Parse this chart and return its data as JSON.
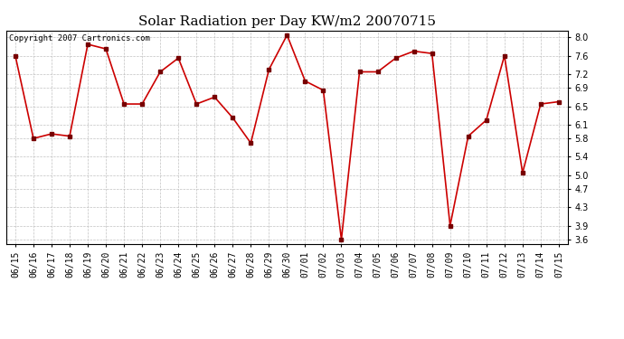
{
  "title": "Solar Radiation per Day KW/m2 20070715",
  "copyright_text": "Copyright 2007 Cartronics.com",
  "dates": [
    "06/15",
    "06/16",
    "06/17",
    "06/18",
    "06/19",
    "06/20",
    "06/21",
    "06/22",
    "06/23",
    "06/24",
    "06/25",
    "06/26",
    "06/27",
    "06/28",
    "06/29",
    "06/30",
    "07/01",
    "07/02",
    "07/03",
    "07/04",
    "07/05",
    "07/06",
    "07/07",
    "07/08",
    "07/09",
    "07/10",
    "07/11",
    "07/12",
    "07/13",
    "07/14",
    "07/15"
  ],
  "values": [
    7.6,
    5.8,
    5.9,
    5.85,
    7.85,
    7.75,
    6.55,
    6.55,
    7.25,
    7.55,
    6.55,
    6.7,
    6.25,
    5.7,
    7.3,
    8.05,
    7.05,
    6.85,
    3.6,
    7.25,
    7.25,
    7.55,
    7.7,
    7.65,
    3.9,
    5.85,
    6.2,
    7.6,
    5.05,
    6.55,
    6.6
  ],
  "line_color": "#cc0000",
  "marker_color": "#770000",
  "background_color": "#ffffff",
  "plot_bg_color": "#ffffff",
  "grid_color": "#bbbbbb",
  "ylim": [
    3.5,
    8.15
  ],
  "yticks": [
    3.6,
    3.9,
    4.3,
    4.7,
    5.0,
    5.4,
    5.8,
    6.1,
    6.5,
    6.9,
    7.2,
    7.6,
    8.0
  ],
  "title_fontsize": 11,
  "tick_fontsize": 7,
  "copyright_fontsize": 6.5
}
